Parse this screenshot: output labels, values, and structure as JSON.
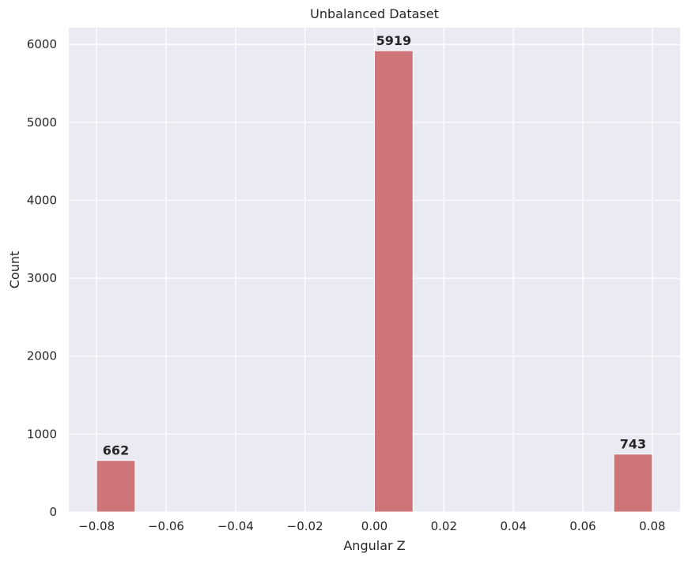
{
  "chart_data": {
    "type": "bar",
    "title": "Unbalanced Dataset",
    "xlabel": "Angular Z",
    "ylabel": "Count",
    "bins": [
      {
        "x0": -0.08,
        "x1": -0.0689,
        "value": 662,
        "label": "662"
      },
      {
        "x0": 0.0,
        "x1": 0.0111,
        "value": 5919,
        "label": "5919"
      },
      {
        "x0": 0.0689,
        "x1": 0.08,
        "value": 743,
        "label": "743"
      }
    ],
    "xlim": [
      -0.088,
      0.088
    ],
    "ylim": [
      0,
      6215
    ],
    "xticks": [
      {
        "value": -0.08,
        "label": "−0.08"
      },
      {
        "value": -0.06,
        "label": "−0.06"
      },
      {
        "value": -0.04,
        "label": "−0.04"
      },
      {
        "value": -0.02,
        "label": "−0.02"
      },
      {
        "value": 0.0,
        "label": "0.00"
      },
      {
        "value": 0.02,
        "label": "0.02"
      },
      {
        "value": 0.04,
        "label": "0.04"
      },
      {
        "value": 0.06,
        "label": "0.06"
      },
      {
        "value": 0.08,
        "label": "0.08"
      }
    ],
    "yticks": [
      {
        "value": 0,
        "label": "0"
      },
      {
        "value": 1000,
        "label": "1000"
      },
      {
        "value": 2000,
        "label": "2000"
      },
      {
        "value": 3000,
        "label": "3000"
      },
      {
        "value": 4000,
        "label": "4000"
      },
      {
        "value": 5000,
        "label": "5000"
      },
      {
        "value": 6000,
        "label": "6000"
      }
    ],
    "grid": true,
    "colors": {
      "bar": "#c44e52",
      "plot_background": "#eaeaf2",
      "grid": "#ffffff"
    }
  }
}
